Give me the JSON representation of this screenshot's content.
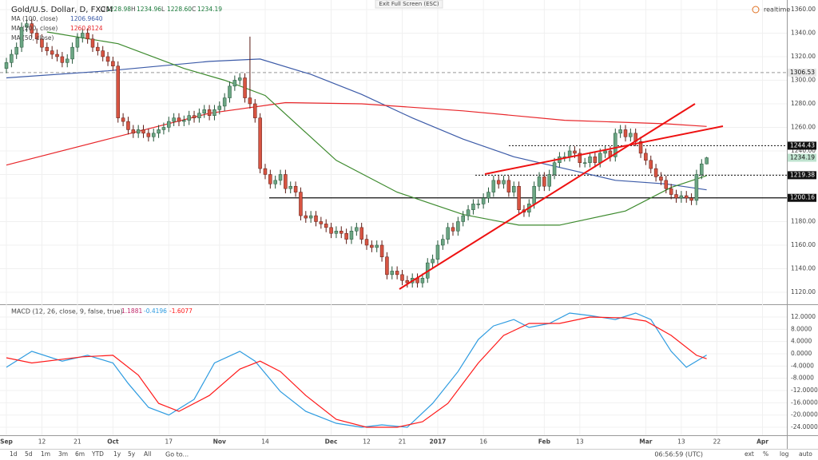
{
  "chart_data": [
    {
      "type": "candlestick",
      "title": "Gold/U.S. Dollar, D, FXCM",
      "header": {
        "letters": [
          "O",
          "H",
          "L",
          "C"
        ],
        "printed": [
          "1228.98",
          "1234.96",
          "1228.60",
          "1234.19"
        ]
      },
      "xlim": [
        -1.26,
        153.8
      ],
      "ylim": [
        1110.5,
        1368.1
      ],
      "grid": true,
      "up_color": "#6ba583",
      "down_color": "#d75442",
      "up_wick": "#225437",
      "down_wick": "#5b1a13",
      "xticks": [
        {
          "value": 0,
          "label": "Sep"
        },
        {
          "value": 7,
          "label": "12"
        },
        {
          "value": 14,
          "label": "21"
        },
        {
          "value": 21,
          "label": "Oct"
        },
        {
          "value": 32,
          "label": "17"
        },
        {
          "value": 42,
          "label": "Nov"
        },
        {
          "value": 51,
          "label": "14"
        },
        {
          "value": 64,
          "label": "Dec"
        },
        {
          "value": 71,
          "label": "12"
        },
        {
          "value": 78,
          "label": "21"
        },
        {
          "value": 85,
          "label": "2017"
        },
        {
          "value": 94,
          "label": "16"
        },
        {
          "value": 106,
          "label": "Feb"
        },
        {
          "value": 113,
          "label": "13"
        },
        {
          "value": 126,
          "label": "Mar"
        },
        {
          "value": 133,
          "label": "13"
        },
        {
          "value": 140,
          "label": "22"
        },
        {
          "value": 149,
          "label": "Apr"
        }
      ],
      "yticks": [
        {
          "value": 1120,
          "label": "1120.00"
        },
        {
          "value": 1140,
          "label": "1140.00"
        },
        {
          "value": 1160,
          "label": "1160.00"
        },
        {
          "value": 1180,
          "label": "1180.00"
        },
        {
          "value": 1200,
          "label": "1200.00"
        },
        {
          "value": 1220,
          "label": "1220.00"
        },
        {
          "value": 1240,
          "label": "1240.00"
        },
        {
          "value": 1260,
          "label": "1260.00"
        },
        {
          "value": 1280,
          "label": "1280.00"
        },
        {
          "value": 1300,
          "label": "1300.00"
        },
        {
          "value": 1320,
          "label": "1320.00"
        },
        {
          "value": 1340,
          "label": "1340.00"
        },
        {
          "value": 1360,
          "label": "1360.00"
        }
      ],
      "open": [
        1310,
        1315,
        1322,
        1328,
        1345,
        1348,
        1340,
        1335,
        1328,
        1325,
        1322,
        1320,
        1315,
        1318,
        1328,
        1336,
        1340,
        1335,
        1328,
        1325,
        1320,
        1316,
        1312,
        1268,
        1265,
        1258,
        1255,
        1258,
        1255,
        1252,
        1255,
        1258,
        1260,
        1265,
        1268,
        1265,
        1266,
        1270,
        1268,
        1272,
        1275,
        1270,
        1275,
        1278,
        1285,
        1295,
        1300,
        1302,
        1285,
        1280,
        1268,
        1225,
        1220,
        1212,
        1215,
        1220,
        1208,
        1210,
        1205,
        1185,
        1183,
        1185,
        1180,
        1178,
        1175,
        1170,
        1172,
        1170,
        1165,
        1172,
        1175,
        1165,
        1160,
        1158,
        1160,
        1150,
        1135,
        1138,
        1135,
        1130,
        1128,
        1132,
        1128,
        1132,
        1145,
        1148,
        1160,
        1165,
        1175,
        1172,
        1180,
        1185,
        1190,
        1195,
        1195,
        1200,
        1205,
        1215,
        1212,
        1215,
        1205,
        1210,
        1190,
        1188,
        1195,
        1210,
        1218,
        1210,
        1220,
        1230,
        1235,
        1235,
        1240,
        1238,
        1230,
        1230,
        1235,
        1230,
        1238,
        1240,
        1235,
        1255,
        1258,
        1252,
        1255,
        1248,
        1238,
        1232,
        1225,
        1218,
        1215,
        1208,
        1203,
        1200,
        1202,
        1200,
        1198,
        1220,
        1228.98
      ],
      "high": [
        1319,
        1326,
        1332,
        1349,
        1352,
        1352,
        1344,
        1339,
        1332,
        1329,
        1326,
        1324,
        1322,
        1332,
        1340,
        1344,
        1344,
        1339,
        1332,
        1329,
        1324,
        1320,
        1316,
        1272,
        1269,
        1262,
        1262,
        1262,
        1259,
        1259,
        1262,
        1264,
        1269,
        1272,
        1272,
        1270,
        1274,
        1274,
        1276,
        1279,
        1279,
        1279,
        1282,
        1289,
        1299,
        1304,
        1306,
        1306,
        1337,
        1284,
        1272,
        1229,
        1224,
        1219,
        1224,
        1224,
        1214,
        1214,
        1209,
        1189,
        1189,
        1189,
        1184,
        1182,
        1179,
        1176,
        1176,
        1174,
        1176,
        1179,
        1179,
        1169,
        1164,
        1164,
        1164,
        1154,
        1142,
        1142,
        1139,
        1134,
        1136,
        1136,
        1136,
        1149,
        1152,
        1164,
        1169,
        1179,
        1179,
        1184,
        1189,
        1194,
        1199,
        1199,
        1204,
        1209,
        1219,
        1219,
        1219,
        1219,
        1214,
        1214,
        1194,
        1199,
        1214,
        1222,
        1222,
        1224,
        1234,
        1239,
        1239,
        1244,
        1244,
        1242,
        1234,
        1239,
        1239,
        1242,
        1244,
        1244,
        1259,
        1262,
        1262,
        1259,
        1259,
        1252,
        1242,
        1236,
        1229,
        1222,
        1219,
        1212,
        1207,
        1206,
        1206,
        1204,
        1224,
        1233,
        1234.96
      ],
      "low": [
        1306,
        1311,
        1318,
        1324,
        1341,
        1336,
        1331,
        1324,
        1321,
        1318,
        1316,
        1311,
        1311,
        1314,
        1324,
        1332,
        1331,
        1324,
        1321,
        1316,
        1312,
        1308,
        1264,
        1261,
        1254,
        1251,
        1251,
        1251,
        1248,
        1248,
        1251,
        1254,
        1256,
        1261,
        1261,
        1261,
        1262,
        1264,
        1264,
        1268,
        1266,
        1266,
        1271,
        1274,
        1281,
        1291,
        1296,
        1281,
        1276,
        1264,
        1221,
        1216,
        1208,
        1208,
        1211,
        1204,
        1204,
        1201,
        1181,
        1179,
        1179,
        1176,
        1174,
        1171,
        1166,
        1166,
        1166,
        1161,
        1161,
        1168,
        1161,
        1156,
        1154,
        1154,
        1146,
        1131,
        1131,
        1131,
        1126,
        1124,
        1124,
        1124,
        1124,
        1128,
        1141,
        1144,
        1156,
        1161,
        1168,
        1168,
        1176,
        1181,
        1186,
        1191,
        1191,
        1196,
        1201,
        1208,
        1208,
        1201,
        1201,
        1186,
        1184,
        1184,
        1191,
        1206,
        1206,
        1206,
        1216,
        1226,
        1231,
        1231,
        1234,
        1226,
        1226,
        1226,
        1226,
        1226,
        1234,
        1231,
        1231,
        1251,
        1248,
        1248,
        1244,
        1234,
        1228,
        1221,
        1214,
        1211,
        1204,
        1199,
        1196,
        1196,
        1196,
        1194,
        1194,
        1216,
        1228.6
      ],
      "close": [
        1315,
        1322,
        1328,
        1345,
        1348,
        1340,
        1335,
        1328,
        1325,
        1322,
        1320,
        1315,
        1318,
        1328,
        1336,
        1340,
        1335,
        1328,
        1325,
        1320,
        1316,
        1312,
        1268,
        1265,
        1258,
        1255,
        1258,
        1255,
        1252,
        1255,
        1258,
        1260,
        1265,
        1268,
        1265,
        1266,
        1270,
        1268,
        1272,
        1275,
        1270,
        1275,
        1278,
        1285,
        1295,
        1300,
        1302,
        1285,
        1280,
        1268,
        1225,
        1220,
        1212,
        1215,
        1220,
        1208,
        1210,
        1205,
        1185,
        1183,
        1185,
        1180,
        1178,
        1175,
        1170,
        1172,
        1170,
        1165,
        1172,
        1175,
        1165,
        1160,
        1158,
        1160,
        1150,
        1135,
        1138,
        1135,
        1130,
        1128,
        1132,
        1128,
        1132,
        1145,
        1148,
        1160,
        1165,
        1175,
        1172,
        1180,
        1185,
        1190,
        1195,
        1195,
        1200,
        1205,
        1215,
        1212,
        1215,
        1205,
        1210,
        1190,
        1188,
        1195,
        1210,
        1218,
        1210,
        1220,
        1230,
        1235,
        1235,
        1240,
        1238,
        1230,
        1230,
        1235,
        1230,
        1238,
        1240,
        1235,
        1255,
        1258,
        1252,
        1255,
        1248,
        1238,
        1232,
        1225,
        1218,
        1215,
        1208,
        1203,
        1200,
        1202,
        1200,
        1198,
        1220,
        1229,
        1234.19
      ],
      "ma": [
        {
          "name": "MA (100, close)",
          "color": "#3c5ba8",
          "value_label": "1206.9640",
          "x": [
            0,
            20,
            40,
            50,
            60,
            70,
            80,
            90,
            100,
            110,
            120,
            130,
            138
          ],
          "values": [
            1302,
            1308,
            1316,
            1318,
            1305,
            1288,
            1268,
            1250,
            1235,
            1225,
            1215,
            1212,
            1206.964
          ]
        },
        {
          "name": "MA (200, close)",
          "color": "#e8262a",
          "value_label": "1260.8124",
          "x": [
            0,
            20,
            40,
            55,
            70,
            90,
            110,
            130,
            138
          ],
          "values": [
            1228,
            1250,
            1272,
            1281,
            1280,
            1274,
            1266,
            1263,
            1260.8124
          ]
        },
        {
          "name": "MA (50, close)",
          "color": "#3d8a2e",
          "x": [
            8,
            22,
            35,
            43,
            51,
            65,
            77,
            90,
            101,
            109,
            122,
            131,
            138
          ],
          "values": [
            1341,
            1331,
            1310,
            1300,
            1287,
            1232,
            1205,
            1186,
            1177,
            1177,
            1189,
            1209,
            1219
          ]
        }
      ],
      "levels": [
        {
          "value": 1306.53,
          "style": "dashed"
        },
        {
          "value": 1244.43,
          "style": "dotted"
        },
        {
          "value": 1219.38,
          "style": "dotted"
        },
        {
          "value": 1200.16,
          "style": "solid"
        }
      ]
    },
    {
      "type": "line",
      "title": "MACD (12, 26, close, 9, false, true)",
      "histogram": 1.1881,
      "ylim": [
        -26.6,
        15.65
      ],
      "yticks": [
        {
          "value": 12,
          "label": "12.0000"
        },
        {
          "value": 8,
          "label": "8.0000"
        },
        {
          "value": 4,
          "label": "4.0000"
        },
        {
          "value": 0,
          "label": "0.0000"
        },
        {
          "value": -4,
          "label": "-4.0000"
        },
        {
          "value": -8,
          "label": "-8.0000"
        },
        {
          "value": -12,
          "label": "-12.0000"
        },
        {
          "value": -16,
          "label": "-16.0000"
        },
        {
          "value": -20,
          "label": "-20.0000"
        },
        {
          "value": -24,
          "label": "-24.0000"
        }
      ],
      "series": [
        {
          "color": "#2d9be0",
          "x": [
            0,
            5,
            11,
            16,
            21,
            24,
            28,
            32,
            37,
            41,
            46,
            49,
            54,
            59,
            65,
            70,
            74,
            79,
            84,
            89,
            93,
            96,
            100,
            103,
            107,
            111,
            115,
            120,
            124,
            127,
            131,
            134,
            138
          ],
          "values": [
            -4.4,
            0.8,
            -2.4,
            -0.5,
            -3,
            -9.7,
            -17.5,
            -20,
            -14.9,
            -3,
            0.8,
            -2.4,
            -12.3,
            -18.8,
            -22.7,
            -24,
            -23.2,
            -24,
            -16.2,
            -5.8,
            4.7,
            9.1,
            11.2,
            8.6,
            9.9,
            13.3,
            12.5,
            11.2,
            13.3,
            11.2,
            0.8,
            -4.4,
            -0.4196
          ]
        },
        {
          "color": "#ff1a1a",
          "x": [
            0,
            5,
            15,
            21,
            26,
            30,
            34,
            40,
            46,
            50,
            54,
            59,
            65,
            71,
            77,
            82,
            87,
            93,
            98,
            103,
            109,
            115,
            122,
            126,
            131,
            136,
            138
          ],
          "values": [
            -1.3,
            -3,
            -1,
            -0.5,
            -7,
            -16.2,
            -18.8,
            -13.6,
            -5,
            -2.4,
            -5.8,
            -13.6,
            -21.4,
            -24,
            -24,
            -22.2,
            -16.2,
            -3,
            6,
            9.9,
            9.9,
            12,
            11.7,
            10.7,
            6,
            -0.5,
            -1.6077
          ]
        }
      ]
    }
  ],
  "ui": {
    "exit": "Exit Full Screen (ESC)",
    "realtime": "realtime",
    "ranges": [
      "1d",
      "5d",
      "1m",
      "3m",
      "6m",
      "YTD",
      "1y",
      "5y",
      "All"
    ],
    "goto": "Go to...",
    "time": "06:56:59 (UTC)",
    "options": [
      "ext",
      "%",
      "log",
      "auto"
    ]
  }
}
